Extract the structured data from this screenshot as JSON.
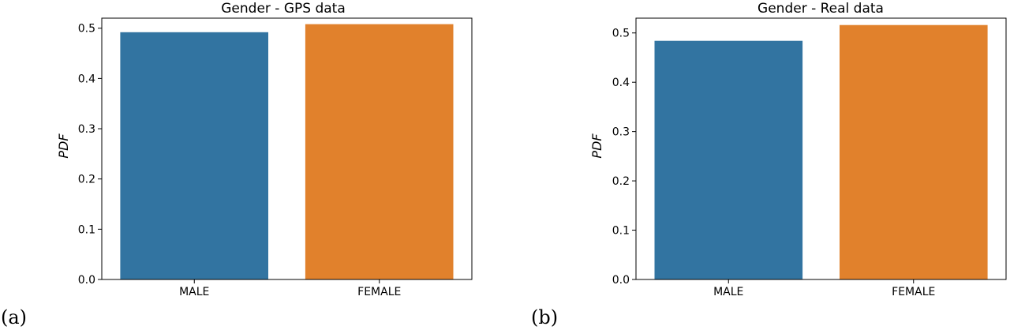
{
  "colors": {
    "male": "#3274a1",
    "female": "#e1812c"
  },
  "chart_data": [
    {
      "type": "bar",
      "panel_label": "(a)",
      "title": "Gender - GPS data",
      "xlabel": "",
      "ylabel": "PDF",
      "ylim": [
        0,
        0.52
      ],
      "yticks": [
        0.0,
        0.1,
        0.2,
        0.3,
        0.4,
        0.5
      ],
      "ytick_labels": [
        "0.0",
        "0.1",
        "0.2",
        "0.3",
        "0.4",
        "0.5"
      ],
      "categories": [
        "MALE",
        "FEMALE"
      ],
      "values": [
        0.492,
        0.508
      ],
      "grid": false,
      "legend": "none"
    },
    {
      "type": "bar",
      "panel_label": "(b)",
      "title": "Gender - Real data",
      "xlabel": "",
      "ylabel": "PDF",
      "ylim": [
        0,
        0.53
      ],
      "yticks": [
        0.0,
        0.1,
        0.2,
        0.3,
        0.4,
        0.5
      ],
      "ytick_labels": [
        "0.0",
        "0.1",
        "0.2",
        "0.3",
        "0.4",
        "0.5"
      ],
      "categories": [
        "MALE",
        "FEMALE"
      ],
      "values": [
        0.484,
        0.516
      ],
      "grid": false,
      "legend": "none"
    }
  ]
}
